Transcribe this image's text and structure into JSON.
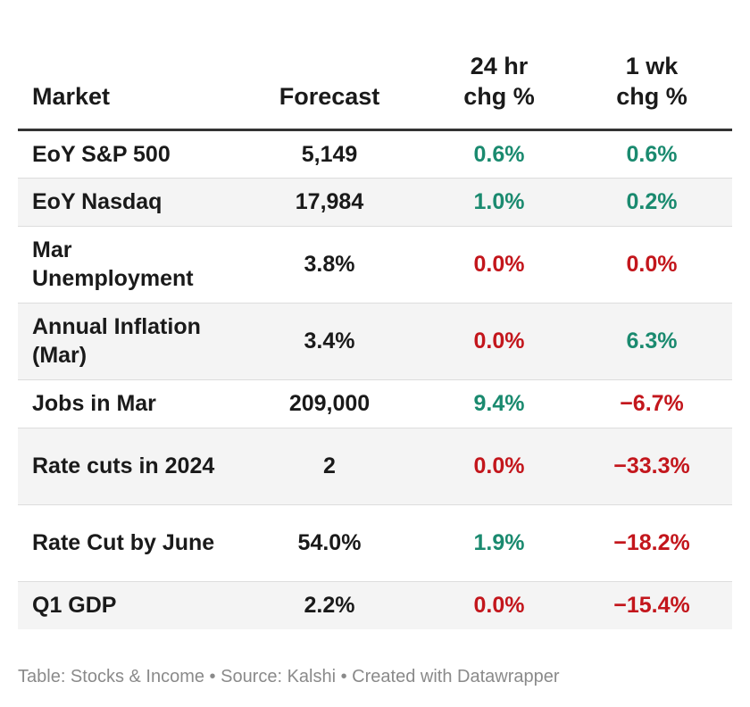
{
  "chart_data": {
    "type": "table",
    "columns": [
      "Market",
      "Forecast",
      "24 hr chg %",
      "1 wk chg %"
    ],
    "rows": [
      {
        "market": "EoY S&P 500",
        "forecast": "5,149",
        "chg24": "0.6%",
        "chg1w": "0.6%",
        "chg24_value": 0.6,
        "chg1w_value": 0.6
      },
      {
        "market": "EoY Nasdaq",
        "forecast": "17,984",
        "chg24": "1.0%",
        "chg1w": "0.2%",
        "chg24_value": 1.0,
        "chg1w_value": 0.2
      },
      {
        "market": "Mar Unemployment",
        "forecast": "3.8%",
        "chg24": "0.0%",
        "chg1w": "0.0%",
        "chg24_value": 0.0,
        "chg1w_value": 0.0
      },
      {
        "market": "Annual Inflation (Mar)",
        "forecast": "3.4%",
        "chg24": "0.0%",
        "chg1w": "6.3%",
        "chg24_value": 0.0,
        "chg1w_value": 6.3
      },
      {
        "market": "Jobs in Mar",
        "forecast": "209,000",
        "chg24": "9.4%",
        "chg1w": "−6.7%",
        "chg24_value": 9.4,
        "chg1w_value": -6.7
      },
      {
        "market": "Rate cuts in 2024",
        "forecast": "2",
        "chg24": "0.0%",
        "chg1w": "−33.3%",
        "chg24_value": 0.0,
        "chg1w_value": -33.3
      },
      {
        "market": "Rate Cut by June",
        "forecast": "54.0%",
        "chg24": "1.9%",
        "chg1w": "−18.2%",
        "chg24_value": 1.9,
        "chg1w_value": -18.2
      },
      {
        "market": "Q1 GDP",
        "forecast": "2.2%",
        "chg24": "0.0%",
        "chg1w": "−15.4%",
        "chg24_value": 0.0,
        "chg1w_value": -15.4
      }
    ],
    "colors": {
      "positive": "#1a8a6f",
      "negative": "#c3161c",
      "shaded_row": "#f4f4f4"
    }
  },
  "header": {
    "market": "Market",
    "forecast": "Forecast",
    "chg24_line1": "24 hr",
    "chg24_line2": "chg %",
    "chg1w_line1": "1 wk",
    "chg1w_line2": "chg %"
  },
  "footer": {
    "text": "Table: Stocks & Income • Source: Kalshi • Created with Datawrapper"
  }
}
